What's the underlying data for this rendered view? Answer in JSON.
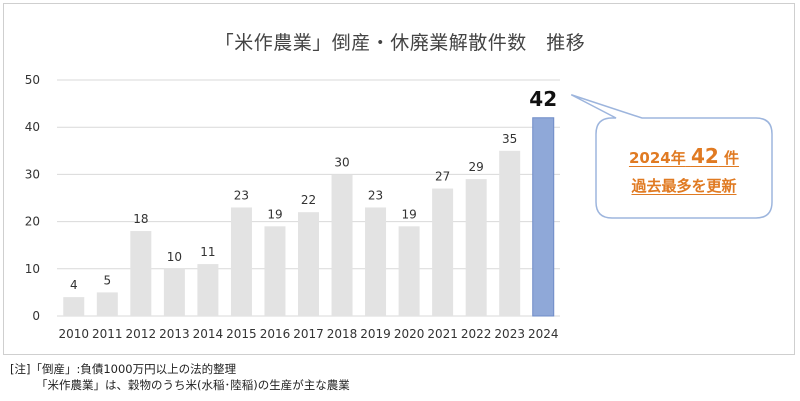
{
  "chart_data": {
    "type": "bar",
    "title": "「米作農業」倒産・休廃業解散件数　推移",
    "categories": [
      "2010",
      "2011",
      "2012",
      "2013",
      "2014",
      "2015",
      "2016",
      "2017",
      "2018",
      "2019",
      "2020",
      "2021",
      "2022",
      "2023",
      "2024"
    ],
    "values": [
      4,
      5,
      18,
      10,
      11,
      23,
      19,
      22,
      30,
      23,
      19,
      27,
      29,
      35,
      42
    ],
    "ylim": [
      0,
      50
    ],
    "yticks": [
      0,
      10,
      20,
      30,
      40,
      50
    ],
    "grid": true,
    "colors": {
      "default_bar": "#e3e3e3",
      "highlight_bar": "#8fa8d8",
      "highlight_bar_edge": "#6f8cc7",
      "callout_text": "#e07a22",
      "callout_border": "#9db5dd",
      "gridline": "#d9d9d9"
    },
    "highlight_index": 14
  },
  "callout": {
    "line1_prefix": "2024年",
    "line1_number": "42",
    "line1_suffix": "件",
    "line2": "過去最多を更新"
  },
  "notes": {
    "line1": "[注]「倒産」:負債1000万円以上の法的整理",
    "line2": "「米作農業」は、穀物のうち米(水稲･陸稲)の生産が主な農業"
  }
}
